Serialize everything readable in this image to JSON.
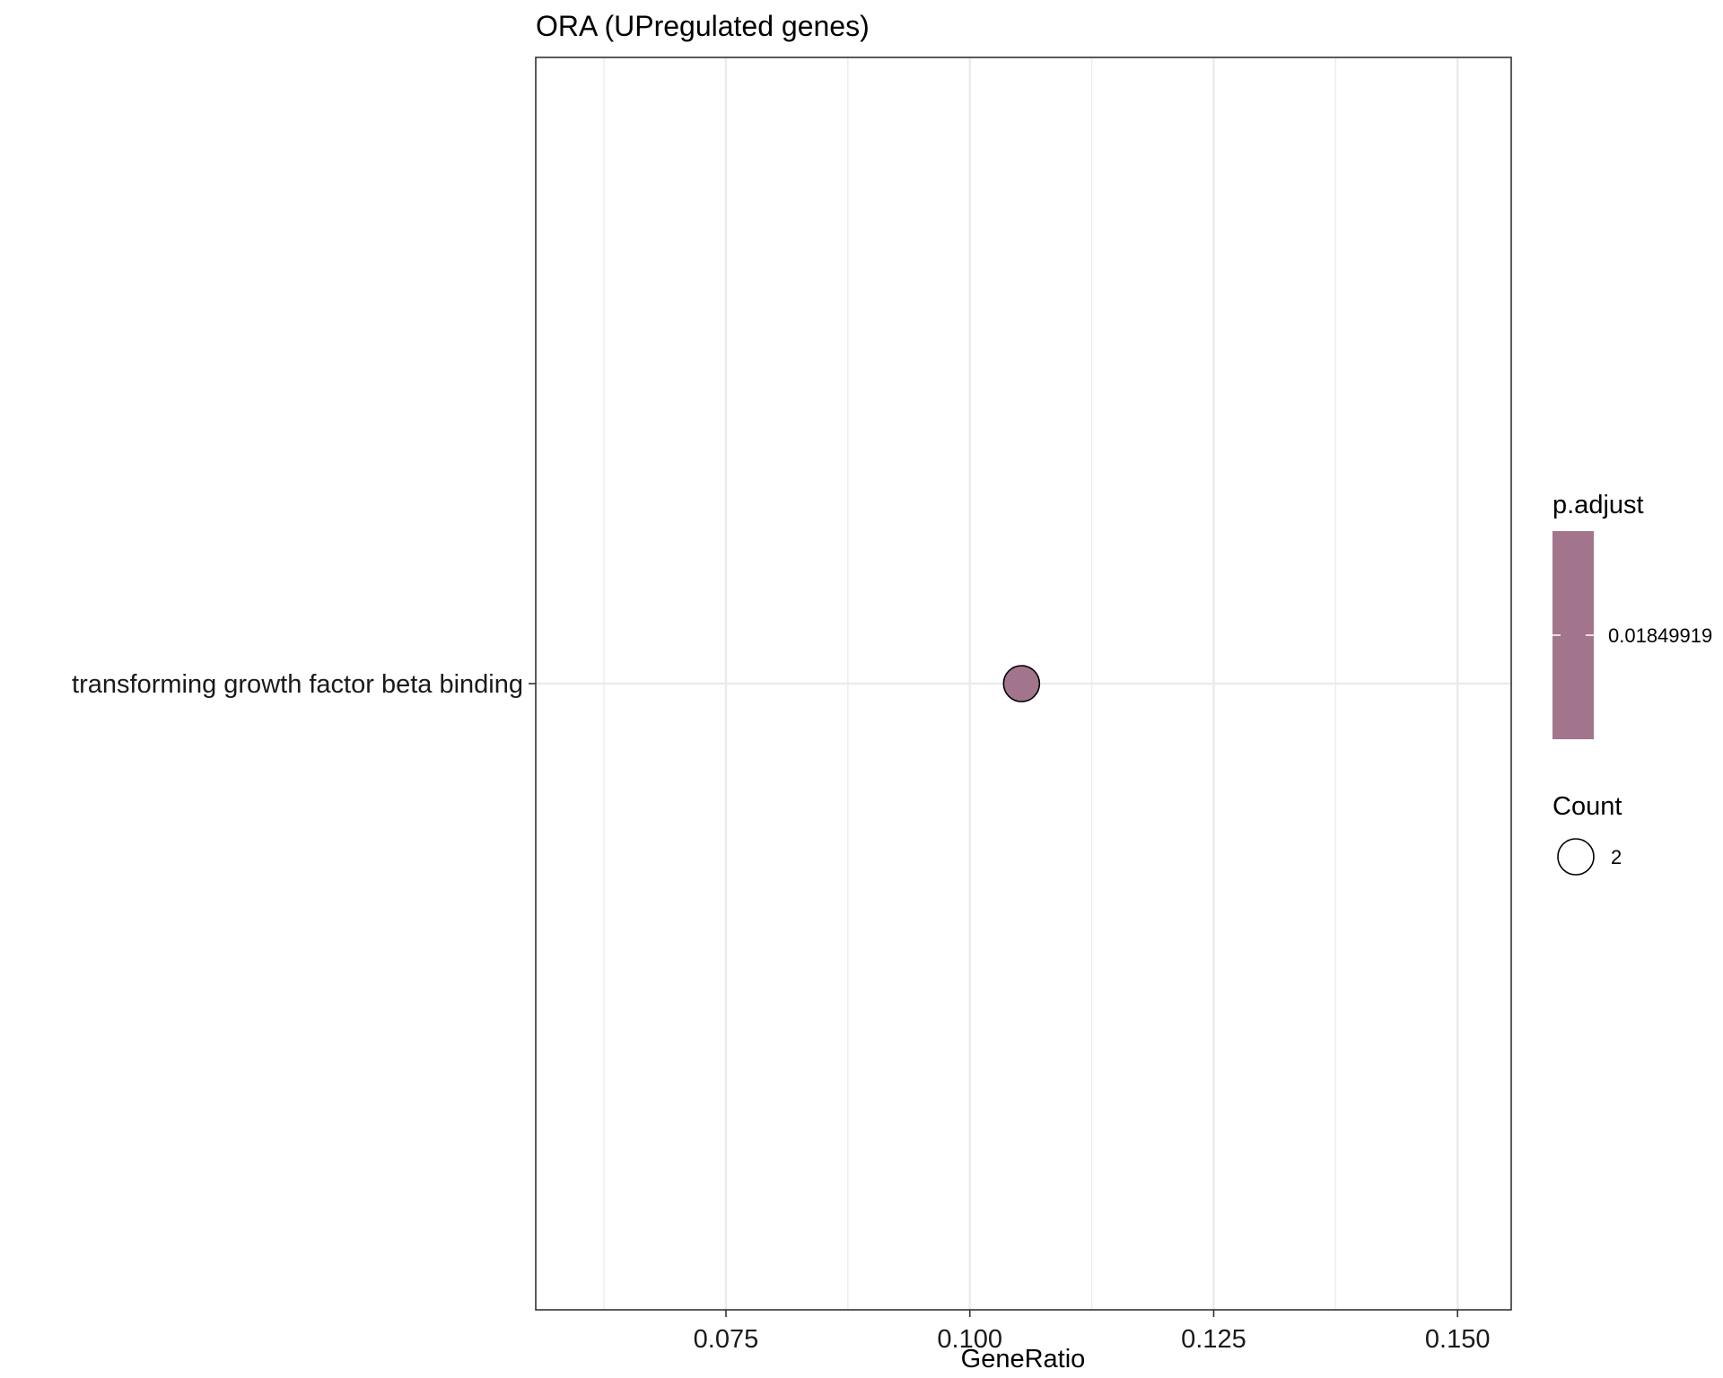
{
  "chart_data": {
    "type": "scatter",
    "title": "ORA (UPregulated genes)",
    "xlabel": "GeneRatio",
    "ylabel": "",
    "xlim": [
      0.0555,
      0.1555
    ],
    "x_ticks": [
      0.075,
      0.1,
      0.125,
      0.15
    ],
    "x_tick_labels": [
      "0.075",
      "0.100",
      "0.125",
      "0.150"
    ],
    "categories": [
      "transforming growth factor beta binding"
    ],
    "points": [
      {
        "category": "transforming growth factor beta binding",
        "gene_ratio": 0.1053,
        "count": 2,
        "p_adjust": 0.01849919
      }
    ],
    "grid": true,
    "colors": {
      "point_fill": "#a2758d",
      "point_stroke": "#000000",
      "grid": "#ebebeb",
      "panel_border": "#333333"
    },
    "legend": {
      "placement": "right",
      "color": {
        "title": "p.adjust",
        "labels": [
          "0.01849919"
        ],
        "bar_color": "#a2758d"
      },
      "size": {
        "title": "Count",
        "labels": [
          "2"
        ]
      }
    }
  }
}
